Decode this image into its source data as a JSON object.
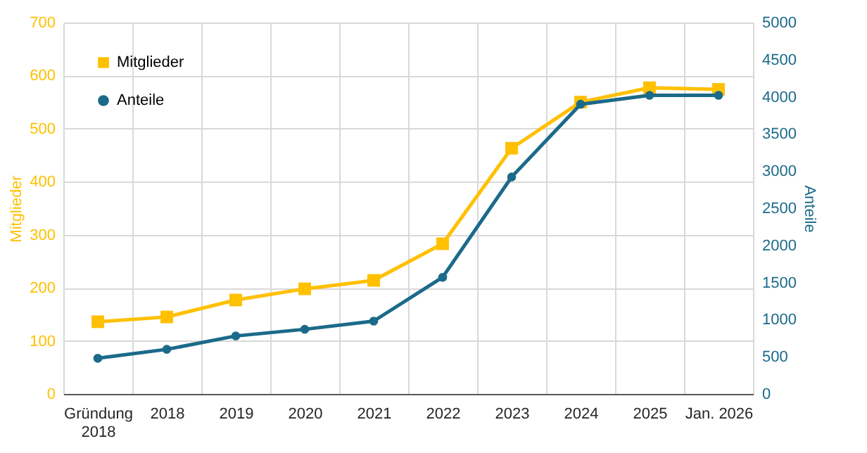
{
  "chart_data": {
    "type": "line",
    "xlabel": null,
    "ylabel": "Mitglieder",
    "y2label": "Anteile",
    "categories": [
      "Gründung 2018",
      "2018",
      "2019",
      "2020",
      "2021",
      "2022",
      "2023",
      "2024",
      "2025",
      "Jan. 2026"
    ],
    "series": [
      {
        "name": "Mitglieder",
        "color": "#ffc000",
        "marker": "square",
        "values": [
          136,
          145,
          177,
          198,
          214,
          283,
          463,
          550,
          577,
          574
        ]
      },
      {
        "name": "Anteile",
        "color": "#1b6a8a",
        "marker": "circle",
        "axis": "y2",
        "values": [
          480,
          600,
          780,
          870,
          980,
          1570,
          2920,
          3900,
          4020,
          4020
        ]
      }
    ],
    "ylim": [
      0,
      700
    ],
    "yticks": [
      0,
      100,
      200,
      300,
      400,
      500,
      600,
      700
    ],
    "y2lim": [
      0,
      5000
    ],
    "y2ticks": [
      0,
      500,
      1000,
      1500,
      2000,
      2500,
      3000,
      3500,
      4000,
      4500,
      5000
    ],
    "grid": true,
    "legend": "top left"
  }
}
